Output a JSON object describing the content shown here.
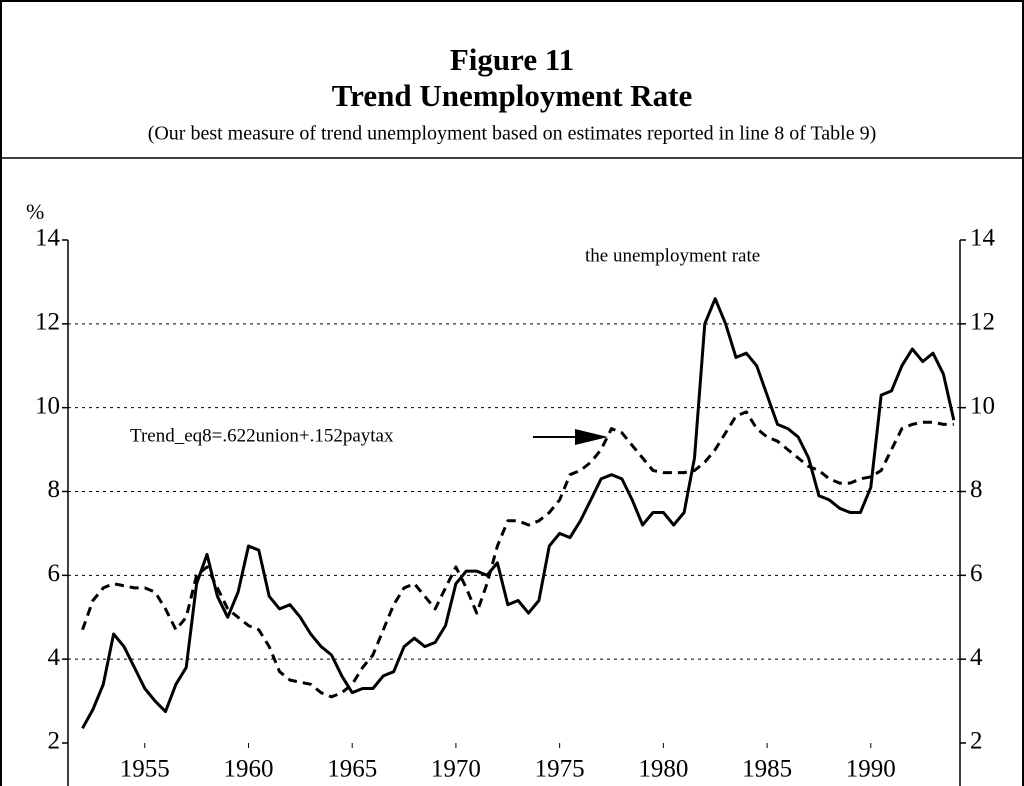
{
  "chart_data": {
    "type": "line",
    "title": "Figure 11",
    "subtitle": "Trend Unemployment Rate",
    "note": "(Our best measure of trend unemployment based on estimates reported in line 8 of Table 9)",
    "y_label": "%",
    "x": [
      1952.0,
      1952.5,
      1953.0,
      1953.5,
      1954.0,
      1954.5,
      1955.0,
      1955.5,
      1956.0,
      1956.5,
      1957.0,
      1957.5,
      1958.0,
      1958.5,
      1959.0,
      1959.5,
      1960.0,
      1960.5,
      1961.0,
      1961.5,
      1962.0,
      1962.5,
      1963.0,
      1963.5,
      1964.0,
      1964.5,
      1965.0,
      1965.5,
      1966.0,
      1966.5,
      1967.0,
      1967.5,
      1968.0,
      1968.5,
      1969.0,
      1969.5,
      1970.0,
      1970.5,
      1971.0,
      1971.5,
      1972.0,
      1972.5,
      1973.0,
      1973.5,
      1974.0,
      1974.5,
      1975.0,
      1975.5,
      1976.0,
      1976.5,
      1977.0,
      1977.5,
      1978.0,
      1978.5,
      1979.0,
      1979.5,
      1980.0,
      1980.5,
      1981.0,
      1981.5,
      1982.0,
      1982.5,
      1983.0,
      1983.5,
      1984.0,
      1984.5,
      1985.0,
      1985.5,
      1986.0,
      1986.5,
      1987.0,
      1987.5,
      1988.0,
      1988.5,
      1989.0,
      1989.5,
      1990.0,
      1990.5,
      1991.0,
      1991.5,
      1992.0,
      1992.5,
      1993.0,
      1993.5,
      1994.0
    ],
    "series": [
      {
        "name": "the unemployment rate",
        "color": "#000000",
        "dash": false,
        "values": [
          2.35,
          2.8,
          3.4,
          4.6,
          4.3,
          3.8,
          3.3,
          3.0,
          2.75,
          3.4,
          3.8,
          5.8,
          6.5,
          5.5,
          5.0,
          5.6,
          6.7,
          6.6,
          5.5,
          5.2,
          5.3,
          5.0,
          4.6,
          4.3,
          4.1,
          3.6,
          3.2,
          3.3,
          3.3,
          3.6,
          3.7,
          4.3,
          4.5,
          4.3,
          4.4,
          4.8,
          5.8,
          6.1,
          6.1,
          6.0,
          6.3,
          5.3,
          5.4,
          5.1,
          5.4,
          6.7,
          7.0,
          6.9,
          7.3,
          7.8,
          8.3,
          8.4,
          8.3,
          7.8,
          7.2,
          7.5,
          7.5,
          7.2,
          7.5,
          8.8,
          12.0,
          12.6,
          12.0,
          11.2,
          11.3,
          11.0,
          10.3,
          9.6,
          9.5,
          9.3,
          8.8,
          7.9,
          7.8,
          7.6,
          7.5,
          7.5,
          8.1,
          10.3,
          10.4,
          11.0,
          11.4,
          11.1,
          11.3,
          10.8,
          9.7
        ]
      },
      {
        "name": "Trend_eq8=.622union+.152paytax",
        "color": "#000000",
        "dash": true,
        "values": [
          4.7,
          5.4,
          5.7,
          5.8,
          5.75,
          5.7,
          5.7,
          5.6,
          5.2,
          4.7,
          5.0,
          6.0,
          6.2,
          5.7,
          5.2,
          5.0,
          4.8,
          4.7,
          4.3,
          3.7,
          3.5,
          3.45,
          3.4,
          3.2,
          3.1,
          3.2,
          3.4,
          3.8,
          4.1,
          4.7,
          5.3,
          5.7,
          5.8,
          5.5,
          5.2,
          5.7,
          6.2,
          5.7,
          5.1,
          5.8,
          6.7,
          7.3,
          7.3,
          7.2,
          7.3,
          7.5,
          7.8,
          8.4,
          8.5,
          8.7,
          9.0,
          9.5,
          9.4,
          9.1,
          8.8,
          8.5,
          8.45,
          8.45,
          8.45,
          8.5,
          8.7,
          9.0,
          9.4,
          9.8,
          9.9,
          9.5,
          9.3,
          9.2,
          9.0,
          8.8,
          8.6,
          8.5,
          8.3,
          8.2,
          8.2,
          8.3,
          8.35,
          8.5,
          9.0,
          9.5,
          9.6,
          9.65,
          9.65,
          9.6,
          9.6
        ]
      }
    ],
    "xlim": [
      1951.3,
      1994.3
    ],
    "xticks": [
      1955,
      1960,
      1965,
      1970,
      1975,
      1980,
      1985,
      1990
    ],
    "ylim": [
      2,
      14
    ],
    "yticks": [
      2,
      4,
      6,
      8,
      10,
      12,
      14
    ],
    "grid": true
  }
}
